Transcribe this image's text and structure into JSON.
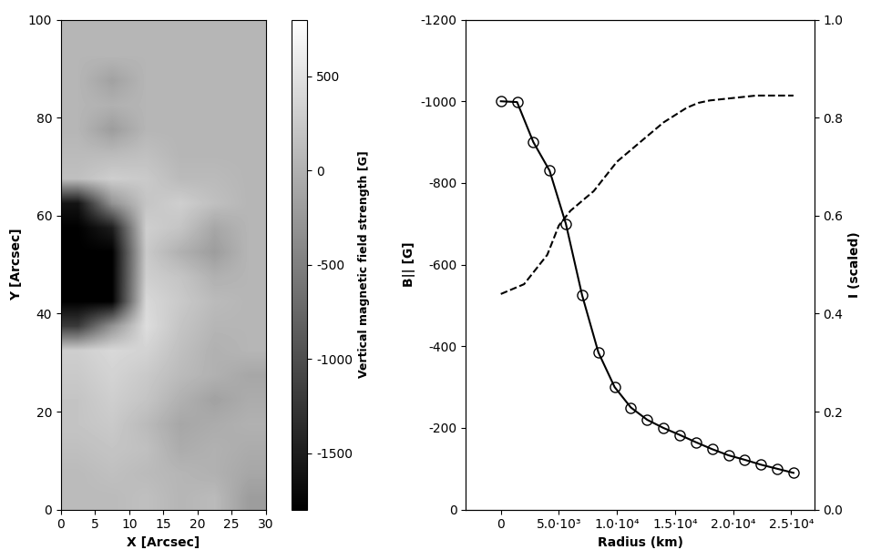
{
  "chart_data": [
    {
      "type": "heatmap",
      "x_label": "X [Arcsec]",
      "y_label": "Y [Arcsec]",
      "xlim": [
        0,
        30
      ],
      "xticks": [
        0,
        5,
        10,
        15,
        20,
        25,
        30
      ],
      "ylim": [
        0,
        100
      ],
      "yticks": [
        0,
        20,
        40,
        60,
        80,
        100
      ],
      "color": "gray",
      "colorbar_label": "Vertical magnetic field strength [G]",
      "color_range": [
        -1800,
        800
      ],
      "color_ticks": [
        -1500,
        -1000,
        -500,
        0,
        500
      ],
      "cells": [
        [
          100,
          100,
          150,
          50,
          100,
          -200
        ],
        [
          100,
          150,
          100,
          50,
          0,
          -100
        ],
        [
          150,
          200,
          150,
          -50,
          0,
          -50
        ],
        [
          200,
          250,
          100,
          -100,
          -50,
          0
        ],
        [
          200,
          300,
          200,
          0,
          -150,
          -50
        ],
        [
          250,
          350,
          250,
          100,
          0,
          -100
        ],
        [
          300,
          400,
          350,
          150,
          0,
          50
        ],
        [
          -1200,
          -300,
          450,
          200,
          50,
          50
        ],
        [
          -1800,
          -1800,
          400,
          250,
          100,
          50
        ],
        [
          -1800,
          -1800,
          300,
          200,
          0,
          50
        ],
        [
          -1800,
          -1800,
          250,
          0,
          -200,
          50
        ],
        [
          -1800,
          -1500,
          300,
          200,
          -100,
          50
        ],
        [
          -1600,
          -300,
          200,
          300,
          150,
          50
        ],
        [
          150,
          300,
          250,
          100,
          100,
          50
        ],
        [
          100,
          100,
          150,
          50,
          50,
          50
        ],
        [
          50,
          -200,
          50,
          50,
          50,
          50
        ],
        [
          50,
          0,
          50,
          50,
          50,
          50
        ],
        [
          50,
          -150,
          50,
          50,
          50,
          50
        ],
        [
          50,
          50,
          50,
          50,
          50,
          50
        ],
        [
          50,
          50,
          50,
          50,
          50,
          50
        ]
      ]
    },
    {
      "type": "line",
      "x_label": "Radius (km)",
      "y_label": "B|| [G]",
      "y2_label": "I (scaled)",
      "xlim": [
        -3000,
        27000
      ],
      "xticks": [
        0,
        {
          "value": 5000,
          "label": "5.0·10³"
        },
        {
          "value": 10000,
          "label": "1.0·10⁴"
        },
        {
          "value": 15000,
          "label": "1.5·10⁴"
        },
        {
          "value": 20000,
          "label": "2.0·10⁴"
        },
        {
          "value": 25000,
          "label": "2.5·10⁴"
        }
      ],
      "ylim": [
        0,
        -1200
      ],
      "yticks": [
        0,
        -200,
        -400,
        -600,
        -800,
        -1000,
        -1200
      ],
      "y2lim": [
        0,
        1.0
      ],
      "y2ticks": [
        {
          "value": 0,
          "label": "0.0"
        },
        0.2,
        0.4,
        0.6,
        0.8,
        {
          "value": 1,
          "label": "1.0"
        }
      ],
      "series": [
        {
          "color": "black",
          "marker": "o",
          "line_style": "solid",
          "x": [
            0,
            1400,
            2800,
            4200,
            5600,
            7000,
            8400,
            9800,
            11200,
            12600,
            14000,
            15400,
            16800,
            18200,
            19600,
            21000,
            22400,
            23800,
            25200
          ],
          "values": [
            -1000,
            -998,
            -900,
            -830,
            -700,
            -525,
            -385,
            -300,
            -250,
            -220,
            -200,
            -183,
            -165,
            -148,
            -133,
            -122,
            -110,
            -100,
            -90
          ]
        },
        {
          "color": "black",
          "marker": "none",
          "line_style": "dashed",
          "axis": "y2",
          "x": [
            0,
            2000,
            4000,
            5000,
            6000,
            7000,
            8000,
            10000,
            12000,
            14000,
            16000,
            17000,
            18000,
            20000,
            22000,
            24000,
            25200
          ],
          "values": [
            0.44,
            0.46,
            0.52,
            0.58,
            0.61,
            0.63,
            0.65,
            0.71,
            0.75,
            0.79,
            0.82,
            0.83,
            0.835,
            0.84,
            0.845,
            0.845,
            0.845
          ]
        }
      ]
    }
  ]
}
